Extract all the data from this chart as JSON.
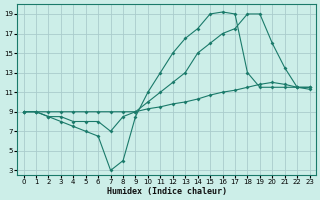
{
  "xlabel": "Humidex (Indice chaleur)",
  "bg_color": "#cceee8",
  "grid_color": "#aacccc",
  "line_color": "#1a7a6a",
  "xlim": [
    -0.5,
    23.5
  ],
  "ylim": [
    2.5,
    20
  ],
  "xticks": [
    0,
    1,
    2,
    3,
    4,
    5,
    6,
    7,
    8,
    9,
    10,
    11,
    12,
    13,
    14,
    15,
    16,
    17,
    18,
    19,
    20,
    21,
    22,
    23
  ],
  "yticks": [
    3,
    5,
    7,
    9,
    11,
    13,
    15,
    17,
    19
  ],
  "line1_x": [
    0,
    1,
    2,
    3,
    4,
    5,
    6,
    7,
    8,
    9,
    10,
    11,
    12,
    13,
    14,
    15,
    16,
    17,
    18,
    19,
    20,
    21,
    22,
    23
  ],
  "line1_y": [
    9,
    9,
    8.5,
    8,
    7.5,
    7,
    6.5,
    3,
    4,
    8.5,
    11,
    13,
    15,
    16.5,
    17.5,
    19,
    19.2,
    19,
    13,
    11.5,
    11.5,
    11.5,
    11.5,
    11.5
  ],
  "line2_x": [
    0,
    1,
    2,
    3,
    4,
    5,
    6,
    7,
    8,
    9,
    10,
    11,
    12,
    13,
    14,
    15,
    16,
    17,
    18,
    19,
    20,
    21,
    22,
    23
  ],
  "line2_y": [
    9,
    9,
    8.5,
    8.5,
    8,
    8,
    8,
    7,
    8.5,
    9,
    10,
    11,
    12,
    13,
    15,
    16,
    17,
    17.5,
    19,
    19,
    16,
    13.5,
    11.5,
    11.5
  ],
  "line3_x": [
    0,
    1,
    2,
    3,
    4,
    5,
    6,
    7,
    8,
    9,
    10,
    11,
    12,
    13,
    14,
    15,
    16,
    17,
    18,
    19,
    20,
    21,
    22,
    23
  ],
  "line3_y": [
    9,
    9,
    9,
    9,
    9,
    9,
    9,
    9,
    9,
    9,
    9.3,
    9.5,
    9.8,
    10,
    10.3,
    10.7,
    11,
    11.2,
    11.5,
    11.8,
    12,
    11.8,
    11.5,
    11.3
  ]
}
